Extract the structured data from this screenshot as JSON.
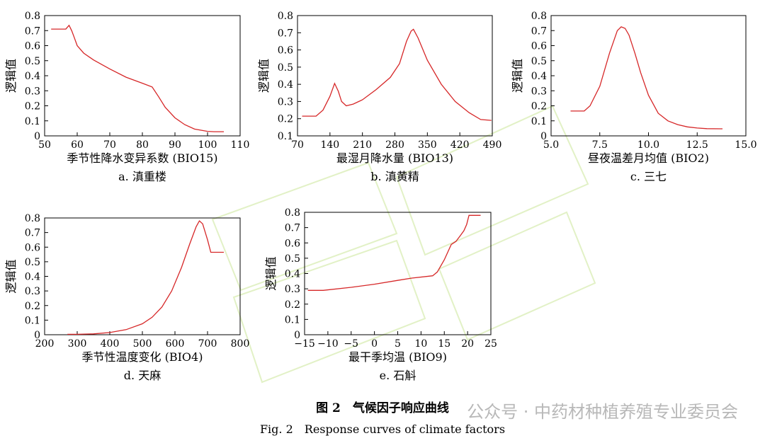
{
  "figure": {
    "title_cn": "图 2　气候因子响应曲线",
    "title_en": "Fig. 2　Response curves of climate factors",
    "watermark": "公众号 · 中药材种植养殖专业委员会"
  },
  "chart_data": [
    {
      "type": "line",
      "panel": "a. 滇重楼",
      "xlabel": "季节性降水变异系数 (BIO15)",
      "ylabel": "逻辑值",
      "xlim": [
        50,
        110
      ],
      "ylim": [
        0,
        0.8
      ],
      "xticks": [
        50,
        60,
        70,
        80,
        90,
        100,
        110
      ],
      "xtick_labels": [
        "50",
        "60",
        "70",
        "80",
        "90",
        "100",
        "110"
      ],
      "yticks": [
        0,
        0.1,
        0.2,
        0.3,
        0.4,
        0.5,
        0.6,
        0.7,
        0.8
      ],
      "ytick_labels": [
        "0",
        "0.1",
        "0.2",
        "0.3",
        "0.4",
        "0.5",
        "0.6",
        "0.7",
        "0.8"
      ],
      "color": "#d62728",
      "x": [
        52,
        56.5,
        57.5,
        58.3,
        59,
        60,
        62,
        65,
        70,
        75,
        80,
        83,
        85,
        87,
        90,
        93,
        96,
        100,
        102,
        105
      ],
      "y": [
        0.71,
        0.71,
        0.735,
        0.7,
        0.66,
        0.6,
        0.55,
        0.505,
        0.445,
        0.39,
        0.35,
        0.325,
        0.26,
        0.19,
        0.12,
        0.075,
        0.045,
        0.03,
        0.028,
        0.028
      ]
    },
    {
      "type": "line",
      "panel": "b. 滇黄精",
      "xlabel": "最湿月降水量 (BIO13)",
      "ylabel": "逻辑值",
      "xlim": [
        70,
        490
      ],
      "ylim": [
        0.1,
        0.8
      ],
      "xticks": [
        70,
        140,
        210,
        280,
        350,
        420,
        490
      ],
      "xtick_labels": [
        "70",
        "140",
        "210",
        "280",
        "350",
        "420",
        "490"
      ],
      "yticks": [
        0.1,
        0.2,
        0.3,
        0.4,
        0.5,
        0.6,
        0.7,
        0.8
      ],
      "ytick_labels": [
        "0.1",
        "0.2",
        "0.3",
        "0.4",
        "0.5",
        "0.6",
        "0.7",
        "0.8"
      ],
      "color": "#d62728",
      "x": [
        80,
        110,
        125,
        140,
        150,
        158,
        165,
        175,
        190,
        210,
        240,
        270,
        290,
        305,
        315,
        320,
        330,
        350,
        380,
        410,
        440,
        465,
        488
      ],
      "y": [
        0.215,
        0.215,
        0.25,
        0.33,
        0.405,
        0.36,
        0.3,
        0.275,
        0.285,
        0.31,
        0.37,
        0.44,
        0.52,
        0.65,
        0.71,
        0.72,
        0.67,
        0.54,
        0.4,
        0.3,
        0.235,
        0.195,
        0.19
      ]
    },
    {
      "type": "line",
      "panel": "c. 三七",
      "xlabel": "昼夜温差月均值 (BIO2)",
      "ylabel": "逻辑值",
      "xlim": [
        5.0,
        15.0
      ],
      "ylim": [
        0,
        0.8
      ],
      "xticks": [
        5.0,
        7.5,
        10.0,
        12.5,
        15.0
      ],
      "xtick_labels": [
        "5.0",
        "7.5",
        "10.0",
        "12.5",
        "15.0"
      ],
      "yticks": [
        0,
        0.1,
        0.2,
        0.3,
        0.4,
        0.5,
        0.6,
        0.7,
        0.8
      ],
      "ytick_labels": [
        "0",
        "0.1",
        "0.2",
        "0.3",
        "0.4",
        "0.5",
        "0.6",
        "0.7",
        "0.8"
      ],
      "color": "#d62728",
      "x": [
        6.0,
        6.7,
        7.0,
        7.5,
        8.0,
        8.4,
        8.6,
        8.8,
        9.0,
        9.3,
        9.6,
        10.0,
        10.5,
        11.0,
        11.5,
        12.0,
        12.5,
        13.0,
        13.8
      ],
      "y": [
        0.165,
        0.165,
        0.2,
        0.33,
        0.55,
        0.7,
        0.725,
        0.715,
        0.67,
        0.55,
        0.42,
        0.27,
        0.15,
        0.1,
        0.075,
        0.06,
        0.052,
        0.048,
        0.047
      ]
    },
    {
      "type": "line",
      "panel": "d. 天麻",
      "xlabel": "季节性温度变化 (BIO4)",
      "ylabel": "逻辑值",
      "xlim": [
        200,
        800
      ],
      "ylim": [
        0,
        0.8
      ],
      "xticks": [
        200,
        300,
        400,
        500,
        600,
        700,
        800
      ],
      "xtick_labels": [
        "200",
        "300",
        "400",
        "500",
        "600",
        "700",
        "800"
      ],
      "yticks": [
        0,
        0.1,
        0.2,
        0.3,
        0.4,
        0.5,
        0.6,
        0.7,
        0.8
      ],
      "ytick_labels": [
        "0",
        "0.1",
        "0.2",
        "0.3",
        "0.4",
        "0.5",
        "0.6",
        "0.7",
        "0.8"
      ],
      "color": "#d62728",
      "x": [
        270,
        300,
        350,
        400,
        450,
        500,
        530,
        560,
        590,
        620,
        645,
        665,
        675,
        685,
        700,
        710,
        720,
        750
      ],
      "y": [
        0.003,
        0.003,
        0.006,
        0.015,
        0.035,
        0.075,
        0.12,
        0.19,
        0.3,
        0.46,
        0.62,
        0.74,
        0.78,
        0.76,
        0.65,
        0.565,
        0.565,
        0.565
      ]
    },
    {
      "type": "line",
      "panel": "e. 石斛",
      "xlabel": "最干季均温 (BIO9)",
      "ylabel": "逻辑值",
      "xlim": [
        -15,
        25
      ],
      "ylim": [
        0,
        0.8
      ],
      "xticks": [
        -15,
        -10,
        -5,
        0,
        5,
        10,
        15,
        20,
        25
      ],
      "xtick_labels": [
        "−15",
        "−10",
        "−5",
        "0",
        "5",
        "10",
        "15",
        "20",
        "25"
      ],
      "yticks": [
        0,
        0.1,
        0.2,
        0.3,
        0.4,
        0.5,
        0.6,
        0.7,
        0.8
      ],
      "ytick_labels": [
        "0",
        "0.1",
        "0.2",
        "0.3",
        "0.4",
        "0.5",
        "0.6",
        "0.7",
        "0.8"
      ],
      "color": "#d62728",
      "x": [
        -14.3,
        -11,
        -5,
        0,
        5,
        8,
        12.5,
        13.5,
        15,
        16.5,
        17.5,
        18.5,
        19.2,
        19.8,
        20.3,
        22.8
      ],
      "y": [
        0.29,
        0.29,
        0.31,
        0.33,
        0.355,
        0.37,
        0.385,
        0.41,
        0.49,
        0.59,
        0.61,
        0.65,
        0.68,
        0.72,
        0.78,
        0.78
      ]
    }
  ]
}
